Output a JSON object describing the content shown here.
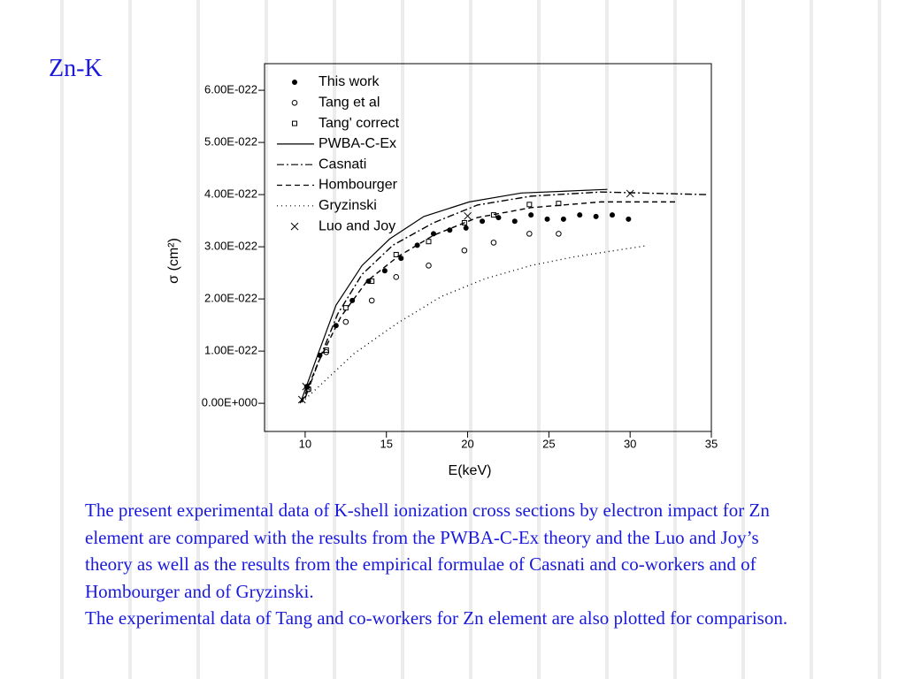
{
  "title": "Zn-K",
  "text": [
    "The present experimental data of K-shell ionization cross sections by electron impact for Zn element are compared with the results from the PWBA-C-Ex theory and the Luo and Joy’s theory as well as the results from the empirical formulae of Casnati and co-workers and of Hombourger and of Gryzinski.",
    "The experimental data of Tang and co-workers for Zn element are also plotted for comparison."
  ],
  "chart_data": {
    "type": "scatter",
    "xlabel": "E(keV)",
    "ylabel": "σ (cm²)",
    "xlim": [
      7.5,
      35
    ],
    "xticks": [
      10,
      15,
      20,
      25,
      30,
      35
    ],
    "ylim": [
      -5.4e-23,
      6.51e-22
    ],
    "yticks": [
      {
        "value": 0,
        "label": "0.00E+000"
      },
      {
        "value": 1e-22,
        "label": "1.00E-022"
      },
      {
        "value": 2e-22,
        "label": "2.00E-022"
      },
      {
        "value": 3e-22,
        "label": "3.00E-022"
      },
      {
        "value": 4e-22,
        "label": "4.00E-022"
      },
      {
        "value": 5e-22,
        "label": "5.00E-022"
      },
      {
        "value": 6e-22,
        "label": "6.00E-022"
      }
    ],
    "legend": "upper left",
    "series": [
      {
        "name": "This work",
        "color": "#000000",
        "marker": "filled-circle",
        "x": [
          10.1,
          10.9,
          11.9,
          12.9,
          13.9,
          14.9,
          15.9,
          16.9,
          17.9,
          18.9,
          19.9,
          20.9,
          21.9,
          22.9,
          23.9,
          24.9,
          25.9,
          26.9,
          27.9,
          28.9,
          29.9
        ],
        "values": [
          3.2e-23,
          9.2e-23,
          1.49e-22,
          1.97e-22,
          2.34e-22,
          2.54e-22,
          2.78e-22,
          3.03e-22,
          3.25e-22,
          3.32e-22,
          3.36e-22,
          3.49e-22,
          3.56e-22,
          3.49e-22,
          3.61e-22,
          3.53e-22,
          3.53e-22,
          3.61e-22,
          3.58e-22,
          3.61e-22,
          3.53e-22
        ]
      },
      {
        "name": "Tang et al",
        "color": "#000000",
        "marker": "open-circle",
        "x": [
          10.2,
          11.3,
          12.5,
          14.1,
          15.6,
          17.6,
          19.8,
          21.6,
          23.8,
          25.6
        ],
        "values": [
          2.7e-23,
          9.8e-23,
          1.56e-22,
          1.97e-22,
          2.42e-22,
          2.64e-22,
          2.93e-22,
          3.08e-22,
          3.25e-22,
          3.25e-22
        ]
      },
      {
        "name": "Tang' correct",
        "color": "#000000",
        "marker": "open-square",
        "x": [
          10.2,
          11.3,
          12.5,
          14.1,
          15.6,
          17.6,
          19.8,
          21.6,
          23.8,
          25.6
        ],
        "values": [
          2.7e-23,
          1.02e-22,
          1.83e-22,
          2.34e-22,
          2.85e-22,
          3.1e-22,
          3.46e-22,
          3.61e-22,
          3.81e-22,
          3.83e-22
        ]
      },
      {
        "name": "PWBA-C-Ex",
        "color": "#000000",
        "line": "solid",
        "x": [
          9.7,
          10.8,
          11.9,
          13.5,
          15.2,
          17.3,
          20.1,
          23.3,
          28.6
        ],
        "values": [
          0,
          9.5e-23,
          1.88e-22,
          2.64e-22,
          3.15e-22,
          3.58e-22,
          3.86e-22,
          4.03e-22,
          4.1e-22
        ]
      },
      {
        "name": "Casnati",
        "color": "#000000",
        "line": "dashdot",
        "x": [
          10,
          10.9,
          12,
          13.5,
          15.4,
          17.9,
          20.6,
          23.9,
          28.2,
          34.7
        ],
        "values": [
          1e-23,
          8.6e-23,
          1.71e-22,
          2.47e-22,
          3.03e-22,
          3.46e-22,
          3.8e-22,
          3.97e-22,
          4.05e-22,
          4e-22
        ]
      },
      {
        "name": "Hombourger",
        "color": "#000000",
        "line": "dashed",
        "x": [
          9.8,
          10.8,
          12.2,
          13.8,
          15.7,
          17.9,
          20.6,
          23.9,
          28.2,
          32.8
        ],
        "values": [
          2e-24,
          7.8e-23,
          1.66e-22,
          2.34e-22,
          2.81e-22,
          3.22e-22,
          3.56e-22,
          3.75e-22,
          3.86e-22,
          3.86e-22
        ]
      },
      {
        "name": "Gryzinski",
        "color": "#000000",
        "line": "dotted",
        "x": [
          9.8,
          10.8,
          13,
          15.7,
          18.4,
          21.1,
          23.9,
          26.6,
          31
        ],
        "values": [
          2e-24,
          3.1e-23,
          9.5e-23,
          1.54e-22,
          2.05e-22,
          2.39e-22,
          2.64e-22,
          2.81e-22,
          3.02e-22
        ]
      },
      {
        "name": "Luo and Joy",
        "color": "#000000",
        "marker": "cross",
        "x": [
          9.8,
          10.05,
          20,
          30
        ],
        "values": [
          7e-24,
          3.2e-23,
          3.59e-22,
          4.02e-22
        ]
      }
    ]
  }
}
